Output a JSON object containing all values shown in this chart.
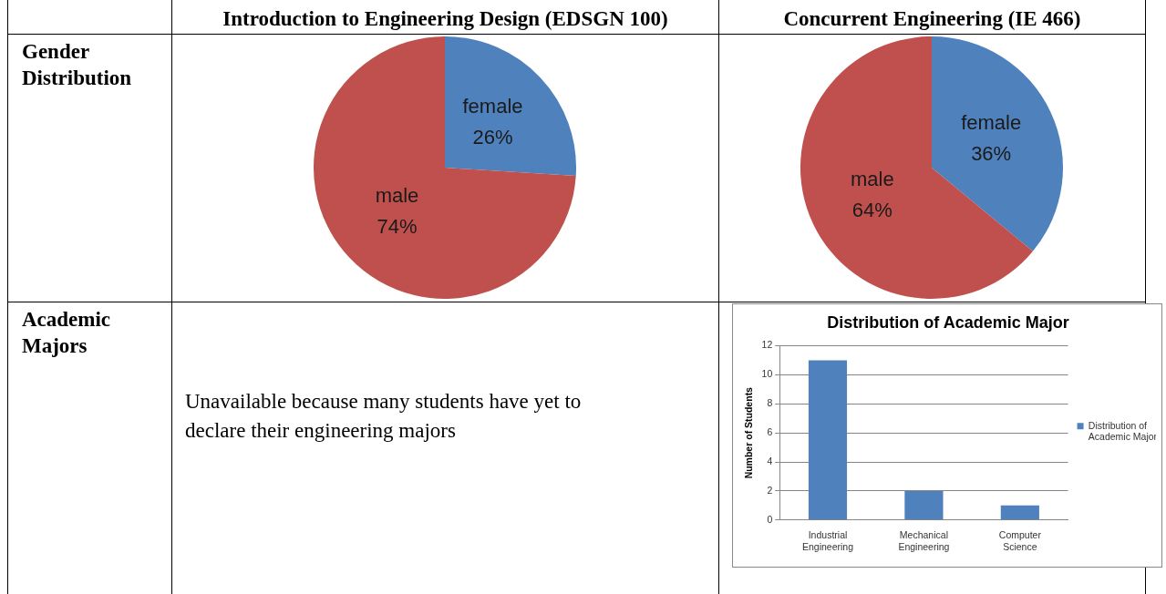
{
  "chart_data": [
    {
      "type": "pie",
      "title": "Introduction to Engineering Design (EDSGN 100)",
      "annotations": [
        "Gender Distribution"
      ],
      "categories": [
        "female",
        "male"
      ],
      "values": [
        26,
        74
      ],
      "value_labels": [
        "26%",
        "74%"
      ],
      "colors": [
        "#4f81bd",
        "#c0504d"
      ],
      "legend": false
    },
    {
      "type": "pie",
      "title": "Concurrent Engineering  (IE 466)",
      "categories": [
        "female",
        "male"
      ],
      "values": [
        36,
        64
      ],
      "value_labels": [
        "36%",
        "64%"
      ],
      "colors": [
        "#4f81bd",
        "#c0504d"
      ],
      "legend": false
    },
    {
      "type": "other",
      "annotations": [
        "Academic Majors",
        "Unavailable because many students have yet to declare their engineering majors"
      ]
    },
    {
      "type": "bar",
      "title": "Distribution of Academic Major",
      "ylabel": "Number of Students",
      "categories": [
        "Industrial Engineering",
        "Mechanical Engineering",
        "Computer Science"
      ],
      "series": [
        {
          "name": "Distribution of Academic Major",
          "color": "#4f81bd",
          "values": [
            11,
            2,
            1
          ]
        }
      ],
      "ylim": [
        0,
        12
      ],
      "yticks": [
        0,
        2,
        4,
        6,
        8,
        10,
        12
      ],
      "grid": "y",
      "legend": "right"
    }
  ]
}
